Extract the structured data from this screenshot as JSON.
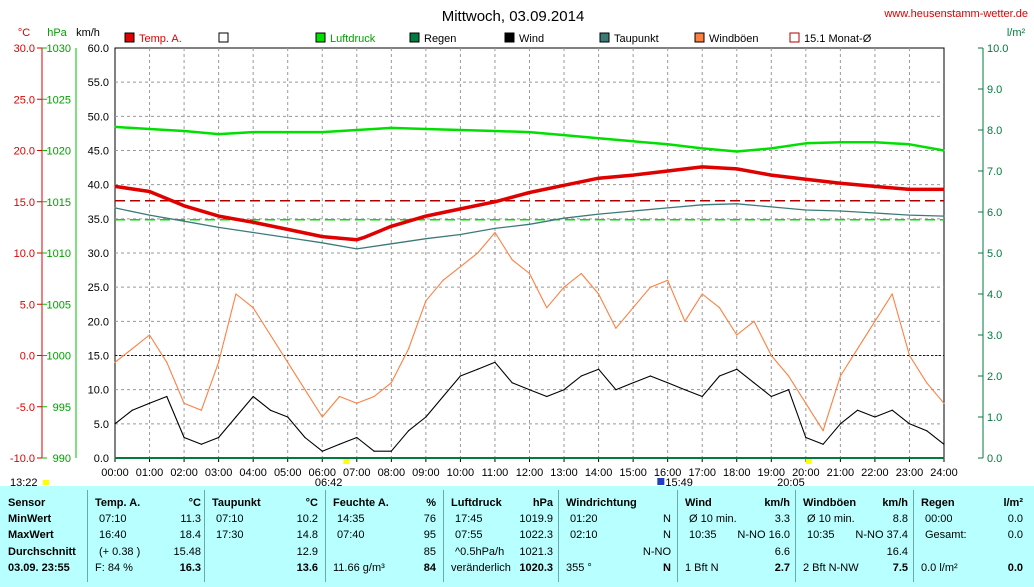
{
  "page": {
    "title": "Mittwoch, 03.09.2014",
    "site": "www.heusenstamm-wetter.de"
  },
  "units": {
    "temp": "°C",
    "pressure": "hPa",
    "wind": "km/h",
    "rain": "l/m²"
  },
  "legend": [
    {
      "label": "Temp. A.",
      "color": "#e00000",
      "style": "fill"
    },
    {
      "label": "",
      "color": "#ffffff",
      "style": "box"
    },
    {
      "label": "Luftdruck",
      "color": "#00e000",
      "style": "fill"
    },
    {
      "label": "Regen",
      "color": "#007a3d",
      "style": "fill"
    },
    {
      "label": "Wind",
      "color": "#000000",
      "style": "fill"
    },
    {
      "label": "Taupunkt",
      "color": "#3c7a78",
      "style": "fill"
    },
    {
      "label": "Windböen",
      "color": "#ff7f3f",
      "style": "fill"
    },
    {
      "label": "15.1 Monat-Ø",
      "color": "#b00000",
      "style": "box"
    }
  ],
  "chart_data": {
    "type": "line",
    "x_ticks": [
      "00:00",
      "01:00",
      "02:00",
      "03:00",
      "04:00",
      "05:00",
      "06:00",
      "07:00",
      "08:00",
      "09:00",
      "10:00",
      "11:00",
      "12:00",
      "13:00",
      "14:00",
      "15:00",
      "16:00",
      "17:00",
      "18:00",
      "19:00",
      "20:00",
      "21:00",
      "22:00",
      "23:00",
      "24:00"
    ],
    "temp_axis": {
      "label": "°C",
      "range": [
        -10,
        30
      ],
      "ticks": [
        "30.0",
        "25.0",
        "20.0",
        "15.0",
        "10.0",
        "5.0",
        "0.0",
        "-5.0",
        "-10.0"
      ]
    },
    "pressure_axis": {
      "label": "hPa",
      "range": [
        990,
        1030
      ],
      "ticks": [
        "1030",
        "1025",
        "1020",
        "1015",
        "1010",
        "1005",
        "1000",
        "995",
        "990"
      ]
    },
    "wind_axis": {
      "label": "km/h",
      "range": [
        0,
        60
      ],
      "ticks": [
        "60.0",
        "55.0",
        "50.0",
        "45.0",
        "40.0",
        "35.0",
        "30.0",
        "25.0",
        "20.0",
        "15.0",
        "10.0",
        "5.0",
        "0.0"
      ]
    },
    "rain_axis": {
      "label": "l/m²",
      "range": [
        0,
        10
      ],
      "ticks": [
        "10.0",
        "9.0",
        "8.0",
        "7.0",
        "6.0",
        "5.0",
        "4.0",
        "3.0",
        "2.0",
        "1.0",
        "0.0"
      ]
    },
    "grid": true,
    "reference_lines": [
      {
        "name": "15.1 Monat-Ø",
        "value_c": 15.1,
        "color": "#b00000"
      },
      {
        "name": "Luftdruck Ø",
        "value_hpa": 1013.25,
        "color": "#00e000"
      },
      {
        "name": "0 °C",
        "value_c": 0,
        "color": "#0000cc"
      }
    ],
    "series": [
      {
        "name": "Temp. A.",
        "axis": "temp",
        "color": "#e00000",
        "x": [
          0,
          1,
          2,
          3,
          4,
          5,
          6,
          7,
          7.2,
          8,
          9,
          10,
          11,
          12,
          13,
          14,
          15,
          16,
          17,
          18,
          19,
          20,
          21,
          22,
          23,
          24
        ],
        "values": [
          16.5,
          16.0,
          14.6,
          13.6,
          13.0,
          12.3,
          11.6,
          11.3,
          11.5,
          12.6,
          13.6,
          14.3,
          15.0,
          15.9,
          16.6,
          17.3,
          17.6,
          18.0,
          18.4,
          18.2,
          17.6,
          17.2,
          16.8,
          16.5,
          16.2,
          16.2
        ]
      },
      {
        "name": "Taupunkt",
        "axis": "temp",
        "color": "#3c7a78",
        "x": [
          0,
          1,
          2,
          3,
          4,
          5,
          6,
          7,
          8,
          9,
          10,
          11,
          12,
          13,
          14,
          15,
          16,
          17,
          18,
          19,
          20,
          21,
          22,
          23,
          24
        ],
        "values": [
          14.4,
          13.7,
          13.1,
          12.5,
          12.0,
          11.5,
          11.0,
          10.4,
          10.9,
          11.4,
          11.8,
          12.4,
          12.8,
          13.4,
          13.8,
          14.1,
          14.4,
          14.7,
          14.8,
          14.5,
          14.2,
          14.1,
          13.9,
          13.7,
          13.6
        ]
      },
      {
        "name": "Luftdruck",
        "axis": "pressure",
        "color": "#00e000",
        "x": [
          0,
          1,
          2,
          3,
          4,
          5,
          6,
          7,
          8,
          9,
          10,
          11,
          12,
          13,
          14,
          15,
          16,
          17,
          18,
          19,
          20,
          21,
          22,
          23,
          24
        ],
        "values": [
          1022.3,
          1022.1,
          1021.9,
          1021.6,
          1021.8,
          1021.8,
          1021.8,
          1022.0,
          1022.2,
          1022.1,
          1022.0,
          1021.9,
          1021.8,
          1021.5,
          1021.2,
          1020.9,
          1020.6,
          1020.2,
          1019.9,
          1020.2,
          1020.7,
          1020.8,
          1020.8,
          1020.6,
          1020.0
        ]
      },
      {
        "name": "Wind",
        "axis": "wind",
        "color": "#000000",
        "x": [
          0,
          0.5,
          1,
          1.5,
          2,
          2.5,
          3,
          3.5,
          4,
          4.5,
          5,
          5.5,
          6,
          6.5,
          7,
          7.5,
          8,
          8.5,
          9,
          9.5,
          10,
          10.5,
          11,
          11.5,
          12,
          12.5,
          13,
          13.5,
          14,
          14.5,
          15,
          15.5,
          16,
          16.5,
          17,
          17.5,
          18,
          18.5,
          19,
          19.5,
          20,
          20.5,
          21,
          21.5,
          22,
          22.5,
          23,
          23.5,
          24
        ],
        "values": [
          5,
          7,
          8,
          9,
          3,
          2,
          3,
          6,
          9,
          7,
          6,
          3,
          1,
          2,
          3,
          1,
          1,
          4,
          6,
          9,
          12,
          13,
          14,
          11,
          10,
          9,
          10,
          12,
          13,
          10,
          11,
          12,
          11,
          10,
          9,
          12,
          13,
          11,
          9,
          10,
          3,
          2,
          5,
          7,
          6,
          7,
          5,
          4,
          2
        ]
      },
      {
        "name": "Windböen",
        "axis": "wind",
        "color": "#ff7f3f",
        "x": [
          0,
          0.5,
          1,
          1.5,
          2,
          2.5,
          3,
          3.5,
          4,
          4.5,
          5,
          5.5,
          6,
          6.5,
          7,
          7.5,
          8,
          8.5,
          9,
          9.5,
          10,
          10.5,
          11,
          11.5,
          12,
          12.5,
          13,
          13.5,
          14,
          14.5,
          15,
          15.5,
          16,
          16.5,
          17,
          17.5,
          18,
          18.5,
          19,
          19.5,
          20,
          20.5,
          21,
          21.5,
          22,
          22.5,
          23,
          23.5,
          24
        ],
        "values": [
          14,
          16,
          18,
          14,
          8,
          7,
          14,
          24,
          22,
          18,
          14,
          10,
          6,
          9,
          8,
          9,
          11,
          16,
          23,
          26,
          28,
          30,
          33,
          29,
          27,
          22,
          25,
          27,
          24,
          19,
          22,
          25,
          26,
          20,
          24,
          22,
          18,
          20,
          15,
          12,
          8,
          4,
          12,
          16,
          20,
          24,
          15,
          11,
          8
        ]
      },
      {
        "name": "Regen",
        "axis": "rain",
        "color": "#007a3d",
        "x": [
          0,
          24
        ],
        "values": [
          0,
          0
        ]
      }
    ]
  },
  "markers": {
    "sunrise": "06:42",
    "sunset": "20:05",
    "left_time": "13:22",
    "mid_time": "15:49"
  },
  "table": {
    "row_labels": [
      "Sensor",
      "MinWert",
      "MaxWert",
      "Durchschnitt",
      "03.09.  23:55"
    ],
    "temp": {
      "header": "Temp. A.",
      "unit": "°C",
      "min_time": "07:10",
      "min": "11.3",
      "max_time": "16:40",
      "max": "18.4",
      "avg_note": "(+ 0.38 )",
      "avg": "15.48",
      "now_note": "F: 84 %",
      "now": "16.3"
    },
    "dew": {
      "header": "Taupunkt",
      "unit": "°C",
      "min_time": "07:10",
      "min": "10.2",
      "max_time": "17:30",
      "max": "14.8",
      "avg": "12.9",
      "now": "13.6"
    },
    "hum": {
      "header": "Feuchte A.",
      "unit": "%",
      "min_time": "14:35",
      "min": "76",
      "max_time": "07:40",
      "max": "95",
      "avg": "85",
      "now_note": "11.66 g/m³",
      "now": "84"
    },
    "press": {
      "header": "Luftdruck",
      "unit": "hPa",
      "min_time": "17:45",
      "min": "1019.9",
      "max_time": "07:55",
      "max": "1022.3",
      "avg_note": "^0.5hPa/h",
      "avg": "1021.3",
      "now_note": "veränderlich",
      "now": "1020.3"
    },
    "dir": {
      "header": "Windrichtung",
      "min_time": "01:20",
      "min": "N",
      "max_time": "02:10",
      "max": "N",
      "avg": "N-NO",
      "now_note": "355 °",
      "now": "N"
    },
    "wind": {
      "header": "Wind",
      "unit": "km/h",
      "min_time": "Ø 10 min.",
      "min": "3.3",
      "max_time": "10:35",
      "max": "N-NO 16.0",
      "avg": "6.6",
      "now_note": "1 Bft N",
      "now": "2.7"
    },
    "gust": {
      "header": "Windböen",
      "unit": "km/h",
      "min_time": "Ø 10 min.",
      "min": "8.8",
      "max_time": "10:35",
      "max": "N-NO 37.4",
      "avg": "16.4",
      "now_note": "2 Bft N-NW",
      "now": "7.5"
    },
    "rain": {
      "header": "Regen",
      "unit": "l/m²",
      "min_time": "00:00",
      "min": "0.0",
      "max_time": "Gesamt:",
      "max": "0.0",
      "now_note": "0.0 l/m²",
      "now": "0.0"
    }
  }
}
